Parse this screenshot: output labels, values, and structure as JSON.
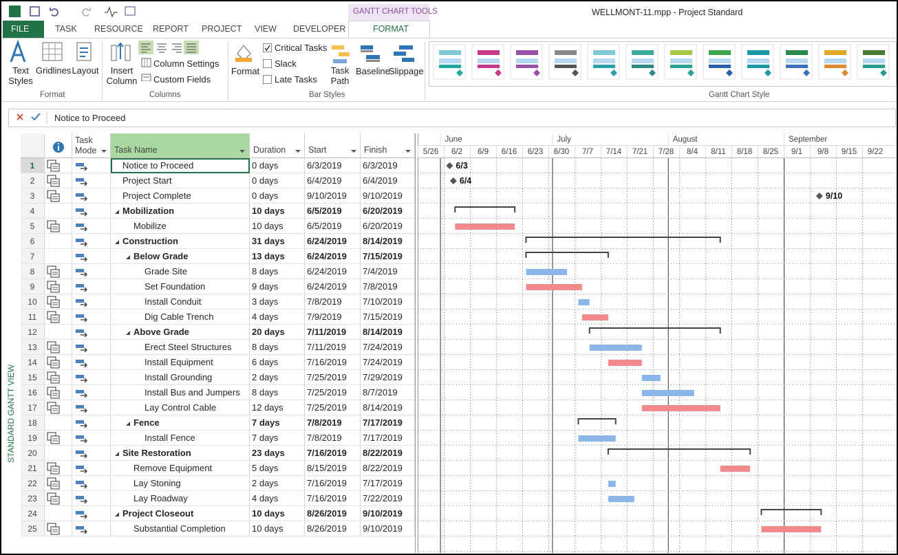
{
  "app": {
    "title": "WELLMONT-11.mpp - Project Standard",
    "context_tab": "GANTT CHART TOOLS"
  },
  "tabs": [
    "FILE",
    "TASK",
    "RESOURCE",
    "REPORT",
    "PROJECT",
    "VIEW",
    "DEVELOPER",
    "FORMAT"
  ],
  "ribbon": {
    "format_group": {
      "label": "Format",
      "text_styles": "Text Styles",
      "gridlines": "Gridlines",
      "layout": "Layout"
    },
    "columns_group": {
      "label": "Columns",
      "insert_column": "Insert Column",
      "column_settings": "Column Settings",
      "custom_fields": "Custom Fields"
    },
    "bar_styles_group": {
      "label": "Bar Styles",
      "format": "Format",
      "critical_tasks": "Critical Tasks",
      "slack": "Slack",
      "late_tasks": "Late Tasks",
      "task_path": "Task Path",
      "baseline": "Baseline",
      "slippage": "Slippage"
    },
    "gantt_style_group": {
      "label": "Gantt Chart Style"
    }
  },
  "formula_bar": "Notice to Proceed",
  "view_label": "STANDARD GANTT VIEW",
  "table": {
    "headers": {
      "mode": "Task Mode",
      "name": "Task Name",
      "duration": "Duration",
      "start": "Start",
      "finish": "Finish"
    },
    "tasks": [
      {
        "id": 1,
        "name": "Notice to Proceed",
        "duration": "0 days",
        "start": "6/3/2019",
        "finish": "6/3/2019",
        "level": 1,
        "kind": "milestone",
        "bar_label": "6/3"
      },
      {
        "id": 2,
        "name": "Project Start",
        "duration": "0 days",
        "start": "6/4/2019",
        "finish": "6/4/2019",
        "level": 1,
        "kind": "milestone",
        "bar_label": "6/4"
      },
      {
        "id": 3,
        "name": "Project Complete",
        "duration": "0 days",
        "start": "9/10/2019",
        "finish": "9/10/2019",
        "level": 1,
        "kind": "milestone",
        "bar_label": "9/10"
      },
      {
        "id": 4,
        "name": "Mobilization",
        "duration": "10 days",
        "start": "6/5/2019",
        "finish": "6/20/2019",
        "level": 1,
        "kind": "summary"
      },
      {
        "id": 5,
        "name": "Mobilize",
        "duration": "10 days",
        "start": "6/5/2019",
        "finish": "6/20/2019",
        "level": 2,
        "kind": "task",
        "critical": true
      },
      {
        "id": 6,
        "name": "Construction",
        "duration": "31 days",
        "start": "6/24/2019",
        "finish": "8/14/2019",
        "level": 1,
        "kind": "summary"
      },
      {
        "id": 7,
        "name": "Below Grade",
        "duration": "13 days",
        "start": "6/24/2019",
        "finish": "7/15/2019",
        "level": 2,
        "kind": "summary"
      },
      {
        "id": 8,
        "name": "Grade Site",
        "duration": "8 days",
        "start": "6/24/2019",
        "finish": "7/4/2019",
        "level": 3,
        "kind": "task",
        "critical": false
      },
      {
        "id": 9,
        "name": "Set Foundation",
        "duration": "9 days",
        "start": "6/24/2019",
        "finish": "7/8/2019",
        "level": 3,
        "kind": "task",
        "critical": true
      },
      {
        "id": 10,
        "name": "Install Conduit",
        "duration": "3 days",
        "start": "7/8/2019",
        "finish": "7/10/2019",
        "level": 3,
        "kind": "task",
        "critical": false
      },
      {
        "id": 11,
        "name": "Dig Cable Trench",
        "duration": "4 days",
        "start": "7/9/2019",
        "finish": "7/15/2019",
        "level": 3,
        "kind": "task",
        "critical": true
      },
      {
        "id": 12,
        "name": "Above Grade",
        "duration": "20 days",
        "start": "7/11/2019",
        "finish": "8/14/2019",
        "level": 2,
        "kind": "summary"
      },
      {
        "id": 13,
        "name": "Erect Steel Structures",
        "duration": "8 days",
        "start": "7/11/2019",
        "finish": "7/24/2019",
        "level": 3,
        "kind": "task",
        "critical": false
      },
      {
        "id": 14,
        "name": "Install Equipment",
        "duration": "6 days",
        "start": "7/16/2019",
        "finish": "7/24/2019",
        "level": 3,
        "kind": "task",
        "critical": true
      },
      {
        "id": 15,
        "name": "Install Grounding",
        "duration": "2 days",
        "start": "7/25/2019",
        "finish": "7/29/2019",
        "level": 3,
        "kind": "task",
        "critical": false
      },
      {
        "id": 16,
        "name": "Install Bus and Jumpers",
        "duration": "8 days",
        "start": "7/25/2019",
        "finish": "8/7/2019",
        "level": 3,
        "kind": "task",
        "critical": false
      },
      {
        "id": 17,
        "name": "Lay Control Cable",
        "duration": "12 days",
        "start": "7/25/2019",
        "finish": "8/14/2019",
        "level": 3,
        "kind": "task",
        "critical": true
      },
      {
        "id": 18,
        "name": "Fence",
        "duration": "7 days",
        "start": "7/8/2019",
        "finish": "7/17/2019",
        "level": 2,
        "kind": "summary"
      },
      {
        "id": 19,
        "name": "Install Fence",
        "duration": "7 days",
        "start": "7/8/2019",
        "finish": "7/17/2019",
        "level": 3,
        "kind": "task",
        "critical": false
      },
      {
        "id": 20,
        "name": "Site Restoration",
        "duration": "23 days",
        "start": "7/16/2019",
        "finish": "8/22/2019",
        "level": 1,
        "kind": "summary"
      },
      {
        "id": 21,
        "name": "Remove Equipment",
        "duration": "5 days",
        "start": "8/15/2019",
        "finish": "8/22/2019",
        "level": 2,
        "kind": "task",
        "critical": true
      },
      {
        "id": 22,
        "name": "Lay Stoning",
        "duration": "2 days",
        "start": "7/16/2019",
        "finish": "7/17/2019",
        "level": 2,
        "kind": "task",
        "critical": false
      },
      {
        "id": 23,
        "name": "Lay Roadway",
        "duration": "4 days",
        "start": "7/16/2019",
        "finish": "7/22/2019",
        "level": 2,
        "kind": "task",
        "critical": false
      },
      {
        "id": 24,
        "name": "Project Closeout",
        "duration": "10 days",
        "start": "8/26/2019",
        "finish": "9/10/2019",
        "level": 1,
        "kind": "summary"
      },
      {
        "id": 25,
        "name": "Substantial Completion",
        "duration": "10 days",
        "start": "8/26/2019",
        "finish": "9/10/2019",
        "level": 2,
        "kind": "task",
        "critical": true
      }
    ]
  },
  "timescale": {
    "months": [
      "June",
      "July",
      "August",
      "September"
    ],
    "weeks": [
      "5/26",
      "6/2",
      "6/9",
      "6/16",
      "6/23",
      "6/30",
      "7/7",
      "7/14",
      "7/21",
      "7/28",
      "8/4",
      "8/11",
      "8/18",
      "8/25",
      "9/1",
      "9/8",
      "9/15",
      "9/22"
    ]
  }
}
